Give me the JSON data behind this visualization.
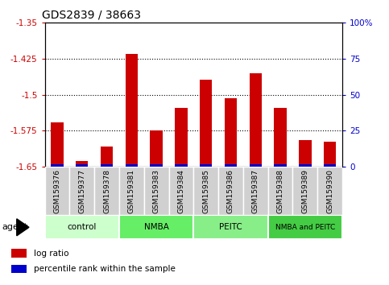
{
  "title": "GDS2839 / 38663",
  "samples": [
    "GSM159376",
    "GSM159377",
    "GSM159378",
    "GSM159381",
    "GSM159383",
    "GSM159384",
    "GSM159385",
    "GSM159386",
    "GSM159387",
    "GSM159388",
    "GSM159389",
    "GSM159390"
  ],
  "log_ratios": [
    -1.558,
    -1.638,
    -1.608,
    -1.415,
    -1.575,
    -1.527,
    -1.468,
    -1.508,
    -1.455,
    -1.527,
    -1.595,
    -1.598
  ],
  "percentile_ranks": [
    2,
    2,
    2,
    2,
    2,
    2,
    2,
    2,
    2,
    2,
    2,
    2
  ],
  "groups": [
    {
      "label": "control",
      "indices": [
        0,
        1,
        2
      ],
      "color": "#ccffcc"
    },
    {
      "label": "NMBA",
      "indices": [
        3,
        4,
        5
      ],
      "color": "#66ee66"
    },
    {
      "label": "PEITC",
      "indices": [
        6,
        7,
        8
      ],
      "color": "#88ee88"
    },
    {
      "label": "NMBA and PEITC",
      "indices": [
        9,
        10,
        11
      ],
      "color": "#44cc44"
    }
  ],
  "ylim_left": [
    -1.65,
    -1.35
  ],
  "yticks_left": [
    -1.65,
    -1.575,
    -1.5,
    -1.425,
    -1.35
  ],
  "ylim_right": [
    0,
    100
  ],
  "yticks_right": [
    0,
    25,
    50,
    75,
    100
  ],
  "ytick_labels_right": [
    "0",
    "25",
    "50",
    "75",
    "100%"
  ],
  "bar_color_red": "#cc0000",
  "bar_color_blue": "#0000cc",
  "left_tick_color": "#cc0000",
  "right_tick_color": "#0000cc",
  "agent_label": "agent",
  "legend_log_ratio": "log ratio",
  "legend_percentile": "percentile rank within the sample",
  "grid_color": "#000000"
}
